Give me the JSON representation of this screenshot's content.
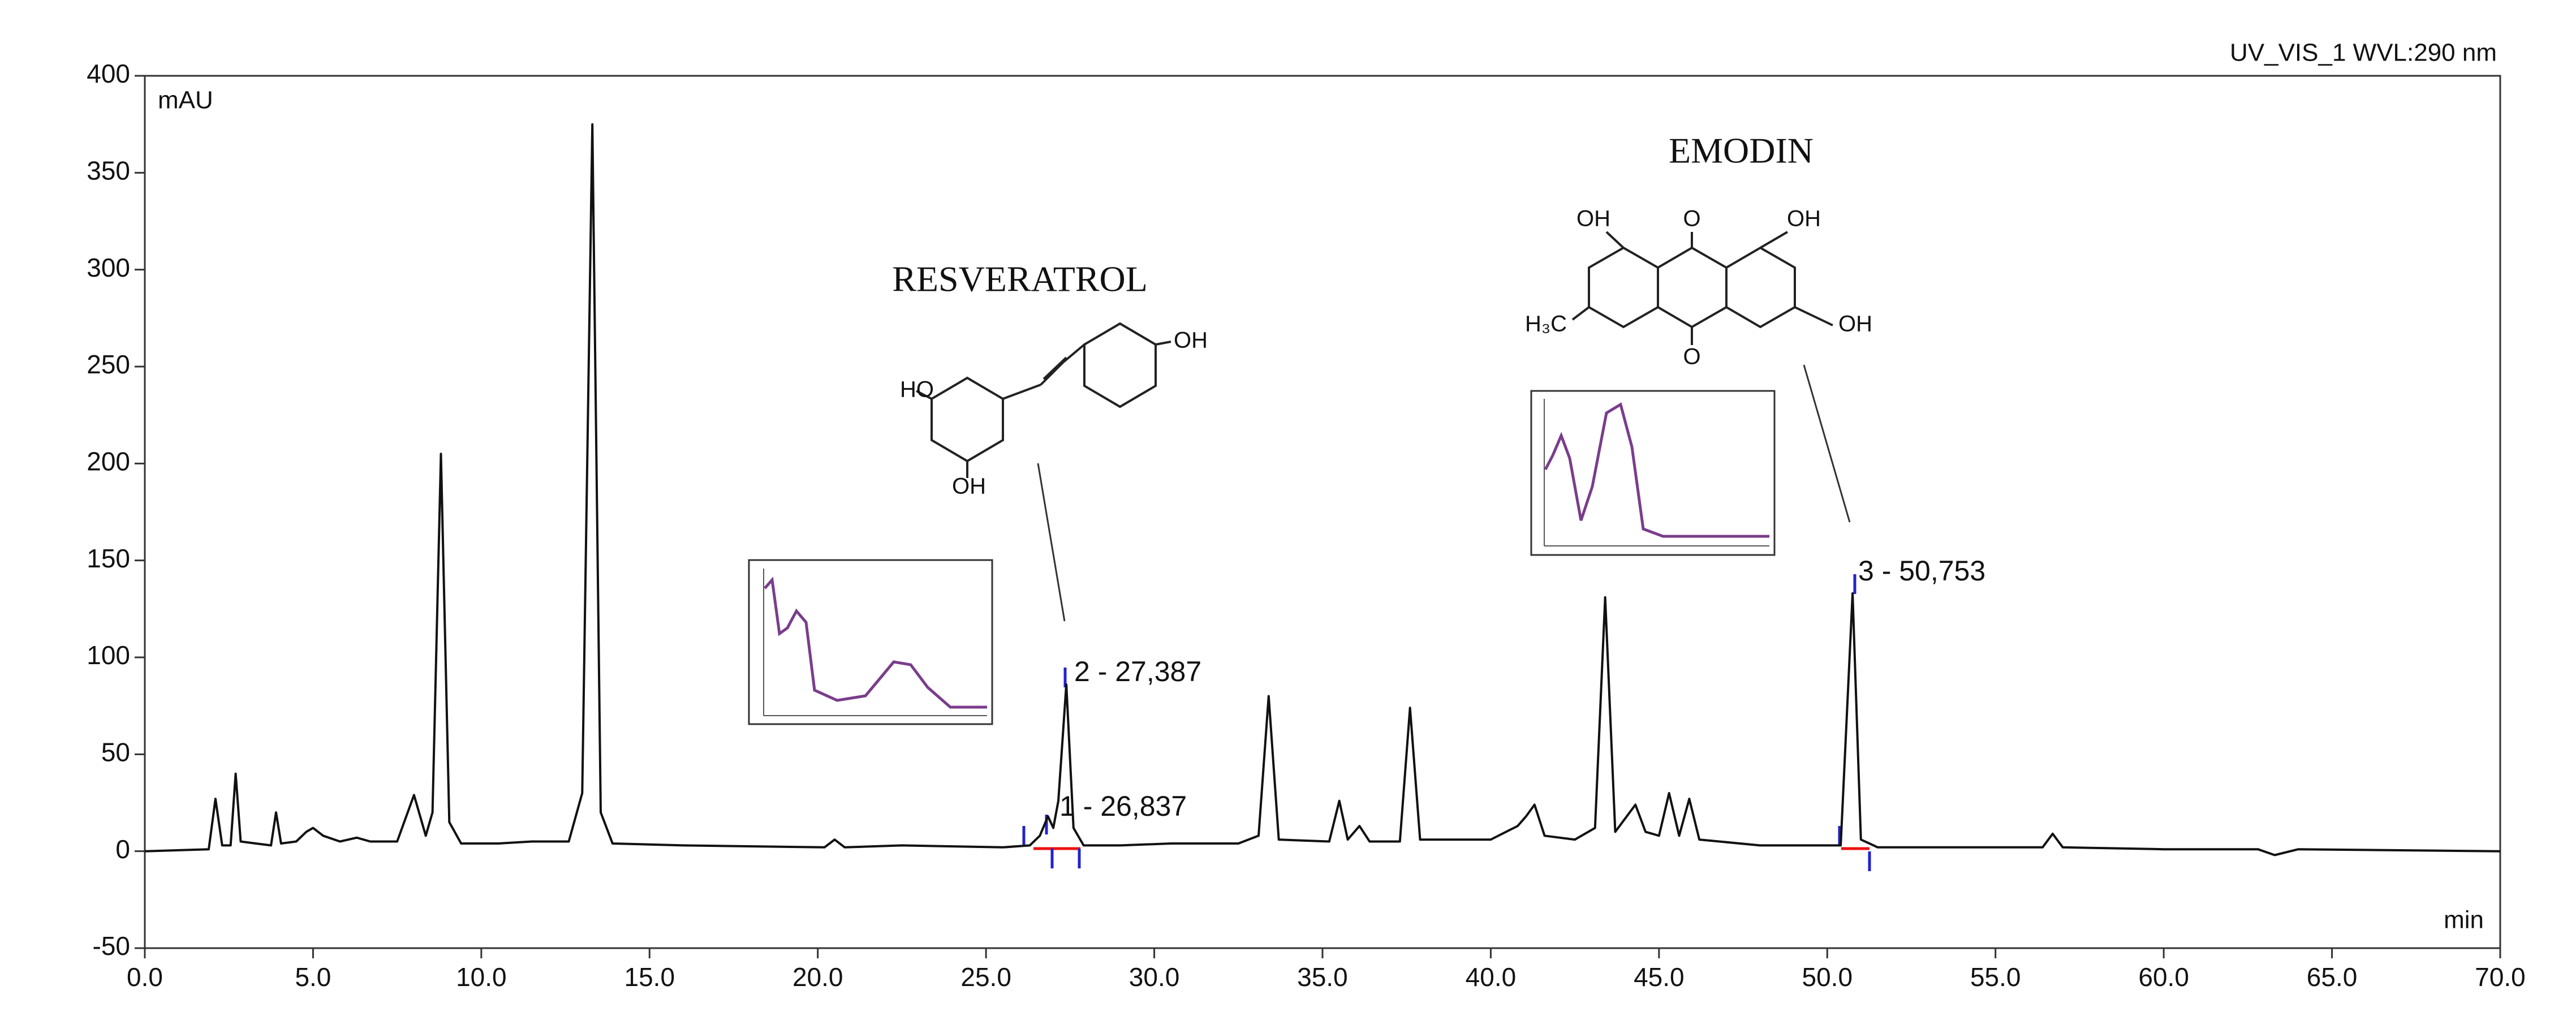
{
  "chart_data": {
    "type": "line",
    "title": "UV_VIS_1 WVL:290 nm",
    "y_label": "mAU",
    "x_label": "min",
    "color": "#111111",
    "x": [
      0,
      1.9,
      2.1,
      2.3,
      2.55,
      2.7,
      2.85,
      3.3,
      3.75,
      3.9,
      4.05,
      4.5,
      4.8,
      5.0,
      5.3,
      5.8,
      6.3,
      6.7,
      7.5,
      8.0,
      8.35,
      8.55,
      8.8,
      9.05,
      9.4,
      10.5,
      11.5,
      12.0,
      12.6,
      13.0,
      13.3,
      13.55,
      13.9,
      16.0,
      20.2,
      20.5,
      20.8,
      22.5,
      25.5,
      26.3,
      26.6,
      26.84,
      27.0,
      27.15,
      27.387,
      27.6,
      27.9,
      29.0,
      30.5,
      32.5,
      33.1,
      33.4,
      33.7,
      35.2,
      35.5,
      35.75,
      36.1,
      36.4,
      37.3,
      37.6,
      37.9,
      40.0,
      40.8,
      41.05,
      41.3,
      41.6,
      42.5,
      43.1,
      43.4,
      43.7,
      44.3,
      44.6,
      45.0,
      45.3,
      45.6,
      45.9,
      46.2,
      48.0,
      50.4,
      50.753,
      51.0,
      51.5,
      56.4,
      56.7,
      57.0,
      60.0,
      62.8,
      63.3,
      64.0,
      70.0
    ],
    "values": [
      0,
      1,
      27,
      3,
      3,
      40,
      5,
      4,
      3,
      20,
      4,
      5,
      10,
      12,
      8,
      5,
      7,
      5,
      5,
      29,
      8,
      20,
      205,
      15,
      4,
      4,
      5,
      5,
      5,
      30,
      375,
      20,
      4,
      3,
      2,
      6,
      2,
      3,
      2,
      3,
      8,
      18,
      12,
      26,
      86,
      12,
      3,
      3,
      4,
      4,
      8,
      80,
      6,
      5,
      26,
      6,
      13,
      5,
      5,
      74,
      6,
      6,
      13,
      18,
      24,
      8,
      6,
      12,
      131,
      10,
      24,
      10,
      8,
      30,
      8,
      27,
      6,
      3,
      3,
      133,
      6,
      2,
      2,
      9,
      2,
      1,
      1,
      -2,
      1,
      0
    ],
    "xlim": [
      0,
      70
    ],
    "ylim": [
      -50,
      400
    ],
    "xticks": [
      {
        "value": 0,
        "label": "0.0"
      },
      {
        "value": 5,
        "label": "5.0"
      },
      {
        "value": 10,
        "label": "10.0"
      },
      {
        "value": 15,
        "label": "15.0"
      },
      {
        "value": 20,
        "label": "20.0"
      },
      {
        "value": 25,
        "label": "25.0"
      },
      {
        "value": 30,
        "label": "30.0"
      },
      {
        "value": 35,
        "label": "35.0"
      },
      {
        "value": 40,
        "label": "40.0"
      },
      {
        "value": 45,
        "label": "45.0"
      },
      {
        "value": 50,
        "label": "50.0"
      },
      {
        "value": 55,
        "label": "55.0"
      },
      {
        "value": 60,
        "label": "60.0"
      },
      {
        "value": 65,
        "label": "65.0"
      },
      {
        "value": 70,
        "label": "70.0"
      }
    ],
    "yticks": [
      -50,
      0,
      50,
      100,
      150,
      200,
      250,
      300,
      350,
      400
    ],
    "annotations": {
      "compounds": [
        "RESVERATROL",
        "EMODIN"
      ],
      "peaks": [
        "2 - 27,387",
        "1 - 26,837",
        "3 - 50,753"
      ],
      "resveratrol_labels": [
        "HO",
        "OH",
        "OH"
      ],
      "emodin_labels": [
        "OH",
        "O",
        "OH",
        "H₃C",
        "O",
        "OH"
      ]
    }
  }
}
